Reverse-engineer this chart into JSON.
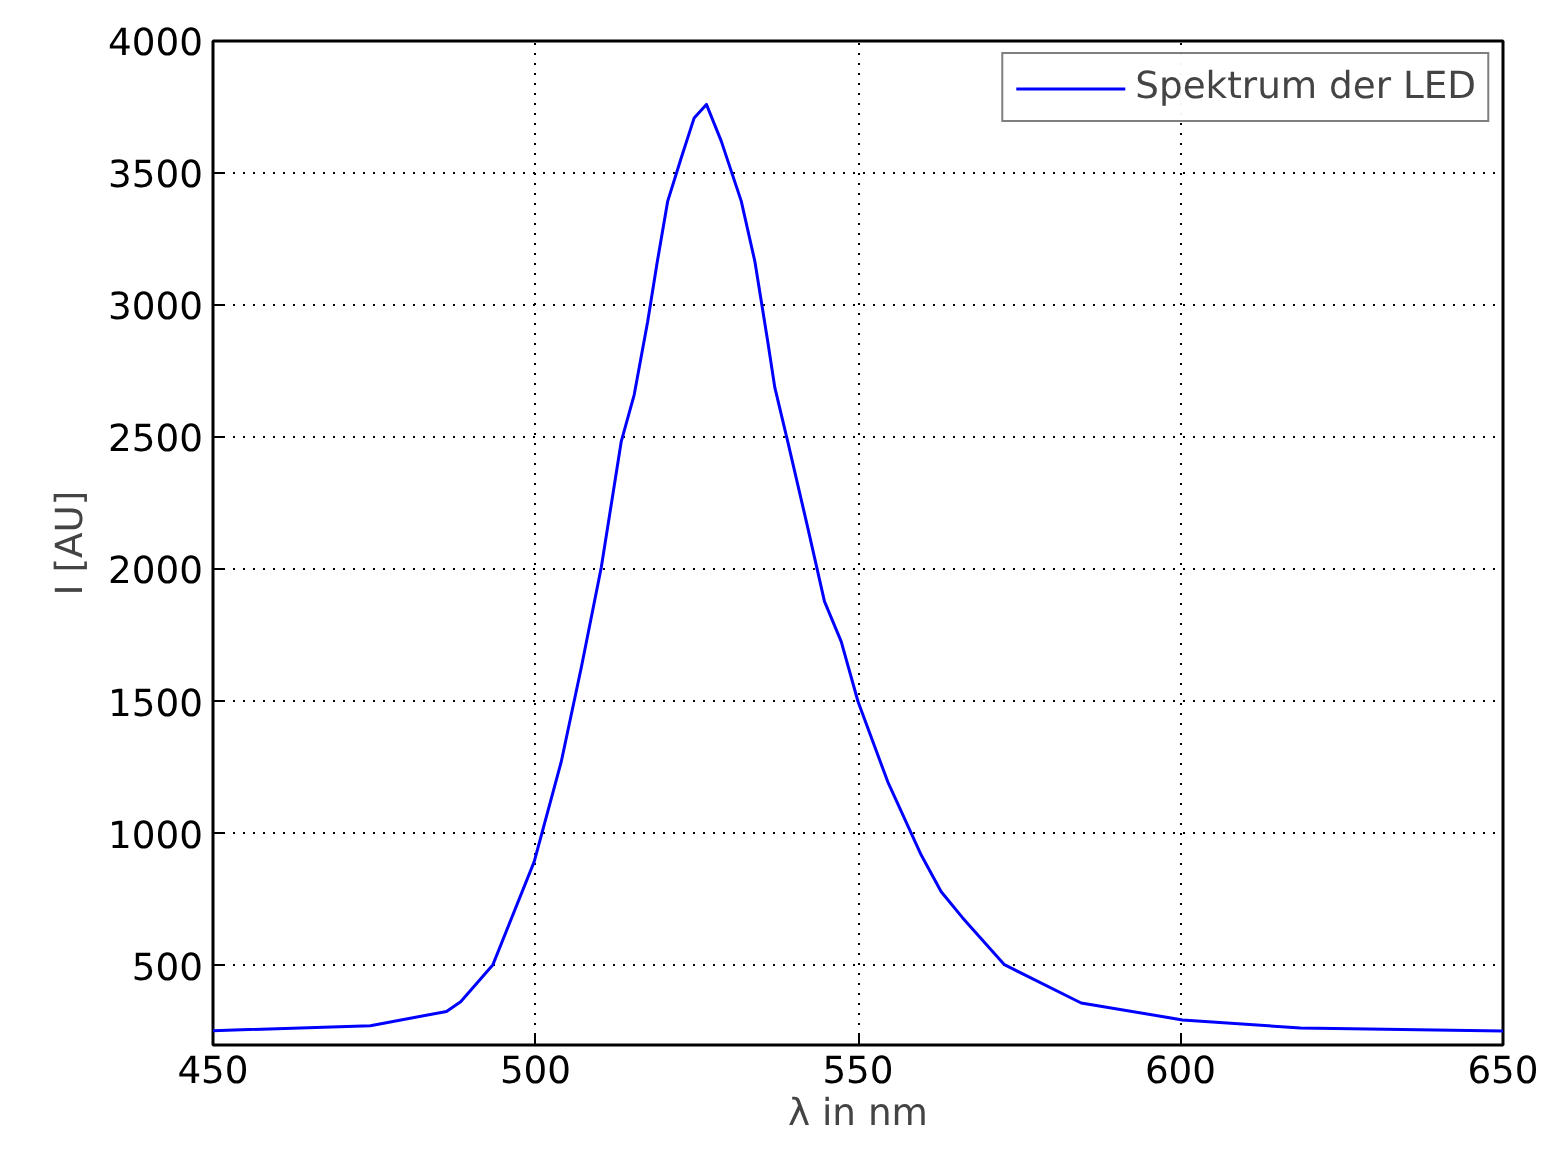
{
  "chart_data": {
    "type": "line",
    "xlabel": "λ in nm",
    "ylabel": "I [AU]",
    "xlim": [
      450,
      650
    ],
    "ylim": [
      200,
      4000
    ],
    "xticks": [
      450,
      500,
      550,
      600,
      650
    ],
    "yticks": [
      500,
      1000,
      1500,
      2000,
      2500,
      3000,
      3500,
      4000
    ],
    "grid": true,
    "legend": "top right",
    "line_style": "solid",
    "series": [
      {
        "name": "Spektrum der LED",
        "color": "#0000ff",
        "x": [
          450,
          474.4,
          486.2,
          488.4,
          493.4,
          499.8,
          504,
          507.1,
          510.2,
          513.3,
          515.3,
          517.4,
          518.9,
          520.5,
          522.6,
          524.6,
          526.5,
          528.8,
          531.9,
          534,
          536,
          537.1,
          539.1,
          542.2,
          544.8,
          547.4,
          550,
          554.6,
          559.8,
          562.9,
          566.2,
          572.7,
          584.6,
          600.3,
          618.6,
          650
        ],
        "values": [
          254,
          273,
          327,
          364,
          504,
          894,
          1273,
          1629,
          2008,
          2485,
          2661,
          2939,
          3167,
          3394,
          3558,
          3709,
          3760,
          3621,
          3394,
          3167,
          2864,
          2689,
          2485,
          2159,
          1879,
          1727,
          1500,
          1197,
          919,
          780,
          682,
          504,
          359,
          295,
          264,
          253
        ]
      }
    ]
  }
}
